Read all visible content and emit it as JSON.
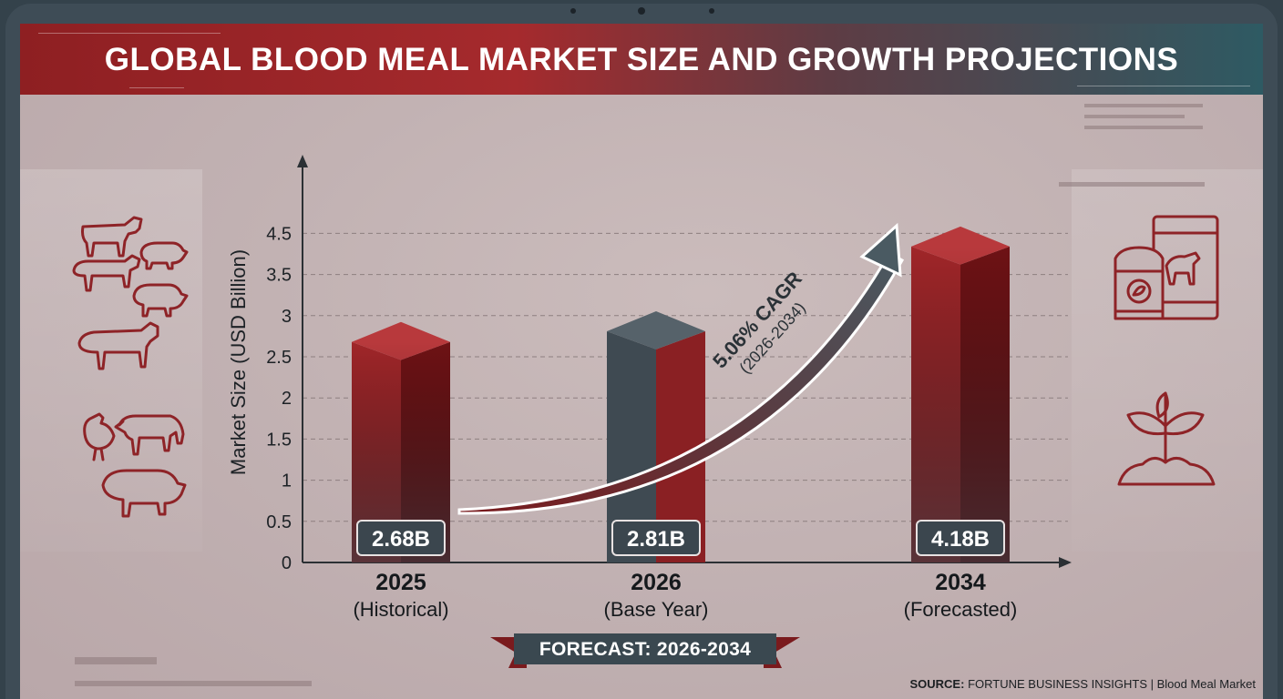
{
  "title": "GLOBAL BLOOD MEAL MARKET SIZE AND GROWTH PROJECTIONS",
  "colors": {
    "red_bar": "#8c1d20",
    "slate_bar": "#3d474f",
    "header_red": "#a52a2d",
    "header_teal": "#2e5a63",
    "icon_stroke": "#8e2327"
  },
  "cagr": {
    "line1": "5.06% CAGR",
    "line2": "(2026-2034)"
  },
  "forecast_banner": "FORECAST: 2026-2034",
  "source": {
    "label": "SOURCE:",
    "text": "FORTUNE BUSINESS INSIGHTS | Blood Meal Market"
  },
  "icons": {
    "left": [
      "cow-icon",
      "pig-icon",
      "sheep-icon",
      "pig-icon",
      "cow-icon",
      "chicken-icon",
      "goat-icon",
      "pig-icon"
    ],
    "right": [
      "feed-bag-icon",
      "plant-soil-icon"
    ]
  },
  "chart_data": {
    "type": "bar",
    "ylabel": "Market Size (USD Billion)",
    "xlabel": "",
    "yticks": [
      "0",
      "0.5",
      "1",
      "1.5",
      "2",
      "2.5",
      "3",
      "3.5",
      "4.5"
    ],
    "categories": [
      {
        "year": "2025",
        "sub": "(Historical)",
        "value": 2.68,
        "label": "2.68B",
        "style": "red"
      },
      {
        "year": "2026",
        "sub": "(Base Year)",
        "value": 2.81,
        "label": "2.81B",
        "style": "slate"
      },
      {
        "year": "2034",
        "sub": "(Forecasted)",
        "value": 4.18,
        "label": "4.18B",
        "style": "red"
      }
    ],
    "grid": "horizontal dashed"
  }
}
